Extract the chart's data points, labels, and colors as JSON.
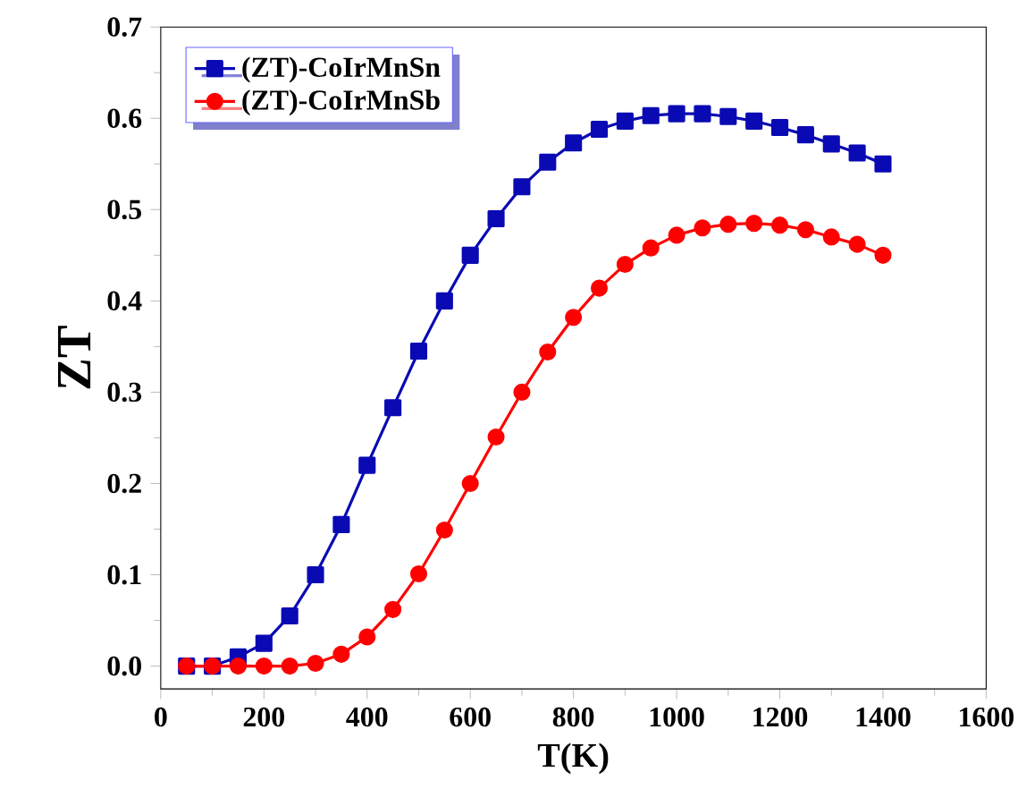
{
  "chart_data": {
    "type": "line",
    "xlabel": "T(K)",
    "ylabel": "ZT",
    "x": [
      50,
      100,
      150,
      200,
      250,
      300,
      350,
      400,
      450,
      500,
      550,
      600,
      650,
      700,
      750,
      800,
      850,
      900,
      950,
      1000,
      1050,
      1100,
      1150,
      1200,
      1250,
      1300,
      1350,
      1400
    ],
    "series": [
      {
        "name": "(ZT)-CoIrMnSn",
        "color": "#0a0ab4",
        "marker": "square",
        "values": [
          0,
          0,
          0.01,
          0.025,
          0.055,
          0.1,
          0.155,
          0.22,
          0.283,
          0.345,
          0.4,
          0.45,
          0.49,
          0.525,
          0.552,
          0.573,
          0.588,
          0.597,
          0.603,
          0.605,
          0.605,
          0.602,
          0.597,
          0.59,
          0.582,
          0.572,
          0.562,
          0.55
        ]
      },
      {
        "name": "(ZT)-CoIrMnSb",
        "color": "#ff0000",
        "marker": "circle",
        "values": [
          0,
          0,
          0,
          0,
          0,
          0.003,
          0.013,
          0.032,
          0.062,
          0.101,
          0.149,
          0.2,
          0.251,
          0.3,
          0.344,
          0.382,
          0.414,
          0.44,
          0.458,
          0.472,
          0.48,
          0.484,
          0.485,
          0.483,
          0.478,
          0.47,
          0.462,
          0.45
        ]
      }
    ],
    "xlim": [
      0,
      1600
    ],
    "xticks": [
      0,
      200,
      400,
      600,
      800,
      1000,
      1200,
      1400,
      1600
    ],
    "ylim": [
      -0.025,
      0.7
    ],
    "yticks": [
      {
        "value": 0,
        "label": "0.0"
      },
      0.1,
      0.2,
      0.3,
      0.4,
      0.5,
      0.6,
      0.7
    ],
    "legend": "top left",
    "grid": false,
    "line_style": "solid"
  }
}
